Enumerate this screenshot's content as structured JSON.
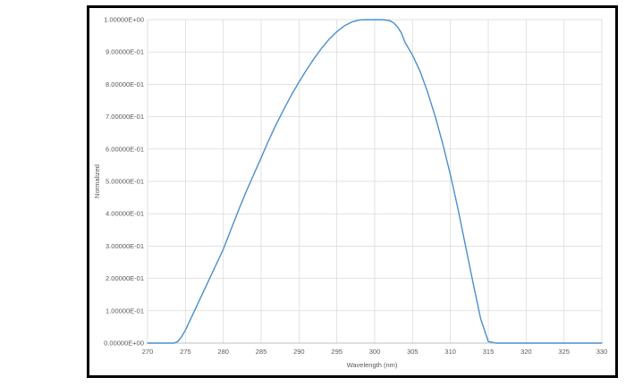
{
  "chart_data": {
    "type": "line",
    "title": "",
    "xlabel": "Wavelength (nm)",
    "ylabel": "Normalized",
    "xlim": [
      270,
      330
    ],
    "ylim": [
      0,
      1
    ],
    "x_ticks": [
      "270",
      "275",
      "280",
      "285",
      "290",
      "295",
      "300",
      "305",
      "310",
      "315",
      "320",
      "325",
      "330"
    ],
    "y_ticks": [
      "0.00000E+00",
      "1.00000E-01",
      "2.00000E-01",
      "3.00000E-01",
      "4.00000E-01",
      "5.00000E-01",
      "6.00000E-01",
      "7.00000E-01",
      "8.00000E-01",
      "9.00000E-01",
      "1.00000E+00"
    ],
    "grid": true,
    "line_color": "#4a8fcc",
    "series": [
      {
        "x": [
          270,
          271,
          272,
          273,
          273.5,
          274,
          274.5,
          275,
          276,
          277,
          278,
          279,
          280,
          281,
          282,
          283,
          284,
          285,
          286,
          287,
          288,
          289,
          290,
          291,
          292,
          293,
          294,
          295,
          296,
          297,
          298,
          299,
          300,
          301,
          302,
          302.5,
          303,
          303.5,
          304,
          305,
          306,
          307,
          308,
          309,
          310,
          311,
          312,
          313,
          314,
          315,
          316,
          317,
          318,
          319,
          319.5,
          320,
          321,
          322,
          323,
          324,
          325,
          326,
          327,
          328,
          329,
          330
        ],
        "y": [
          0,
          0,
          0,
          0,
          0,
          0.005,
          0.02,
          0.04,
          0.09,
          0.14,
          0.19,
          0.24,
          0.29,
          0.35,
          0.41,
          0.467,
          0.52,
          0.573,
          0.627,
          0.677,
          0.723,
          0.767,
          0.807,
          0.845,
          0.88,
          0.912,
          0.94,
          0.963,
          0.981,
          0.993,
          0.999,
          1.0,
          1.0,
          1.0,
          0.997,
          0.99,
          0.978,
          0.96,
          0.93,
          0.89,
          0.84,
          0.775,
          0.7,
          0.615,
          0.52,
          0.415,
          0.3,
          0.185,
          0.075,
          0.005,
          0,
          0,
          0,
          0,
          0,
          0,
          0,
          0,
          0,
          0,
          0,
          0,
          0,
          0,
          0,
          0
        ]
      }
    ]
  }
}
